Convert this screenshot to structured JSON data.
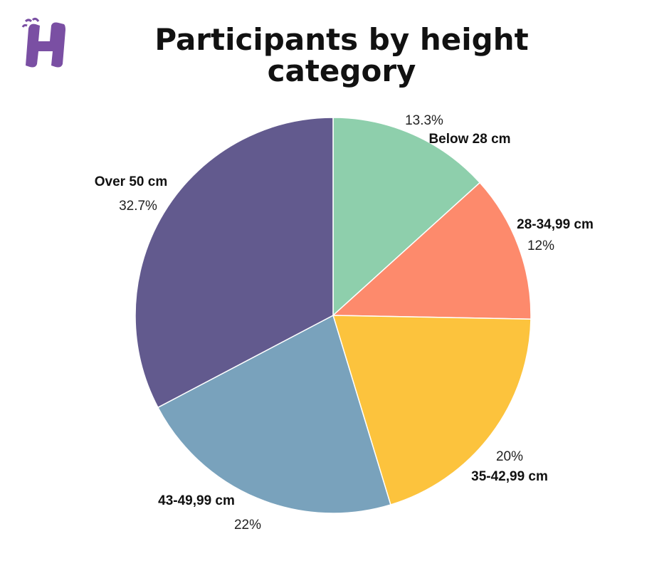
{
  "chart_data": {
    "type": "pie",
    "title": "Participants by height category",
    "slices": [
      {
        "label": "Below 28 cm",
        "value": 13.3,
        "pct_label": "13.3%",
        "color": "#8ecfac"
      },
      {
        "label": "28-34,99 cm",
        "value": 12,
        "pct_label": "12%",
        "color": "#fd8a6c"
      },
      {
        "label": "35-42,99 cm",
        "value": 20,
        "pct_label": "20%",
        "color": "#fcc33d"
      },
      {
        "label": "43-49,99 cm",
        "value": 22,
        "pct_label": "22%",
        "color": "#79a2bc"
      },
      {
        "label": "Over 50 cm",
        "value": 32.7,
        "pct_label": "32.7%",
        "color": "#625a8e"
      }
    ]
  },
  "brand": {
    "logo_icon": "h-logo-icon",
    "logo_color": "#7a4fa3"
  }
}
